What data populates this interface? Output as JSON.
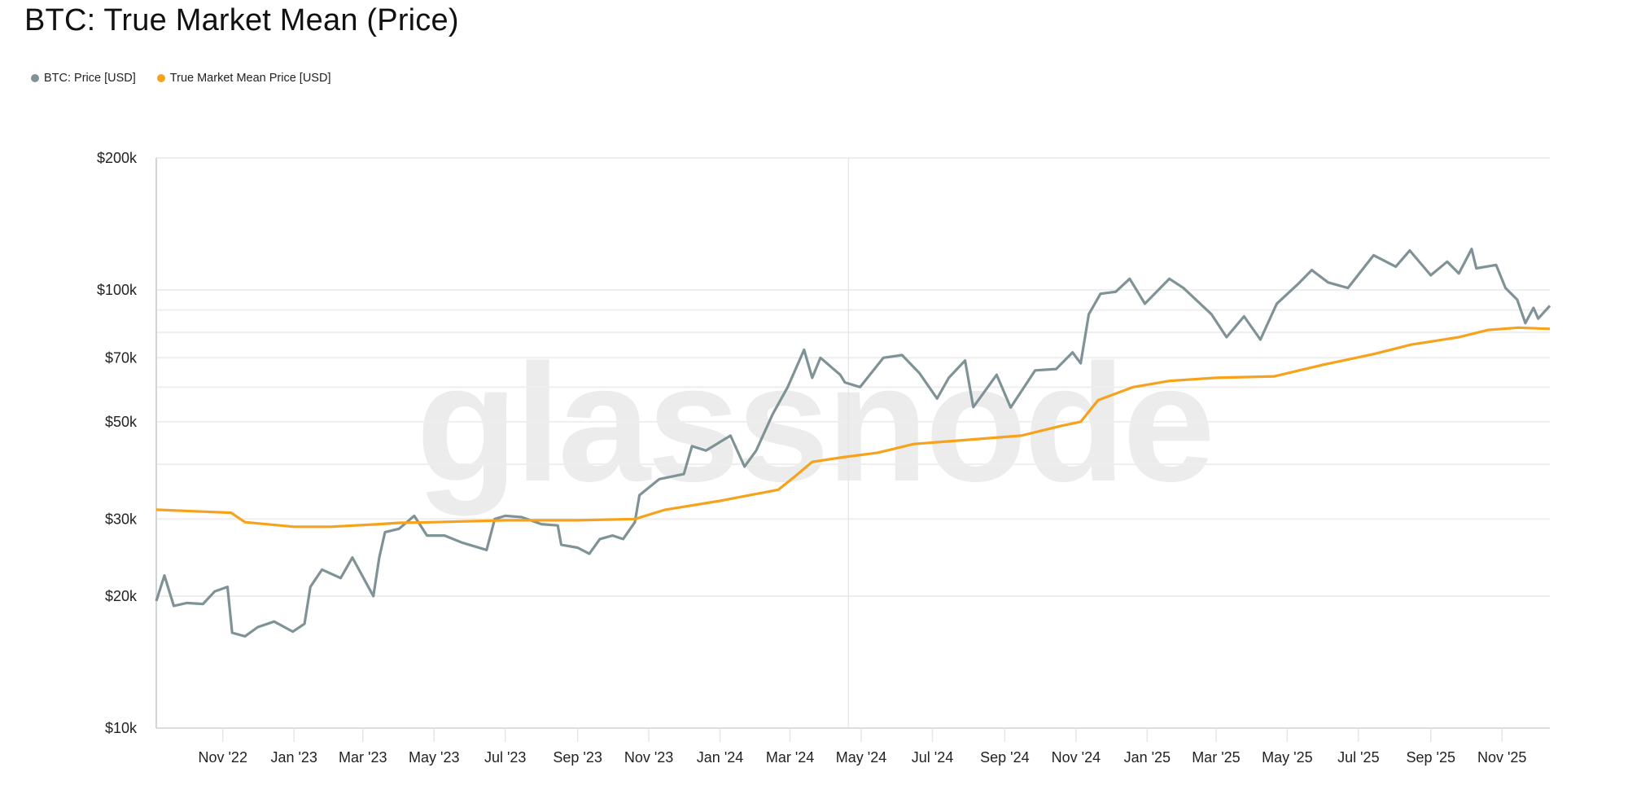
{
  "chart_data": {
    "type": "line",
    "title": "BTC: True Market Mean (Price)",
    "watermark": "glassnode",
    "xlabel": "",
    "ylabel": "",
    "yscale": "log",
    "ylim": [
      10000,
      200000
    ],
    "xlim": [
      "2022-09-05",
      "2025-12-12"
    ],
    "grid": true,
    "legend_position": "top-left",
    "y_gridlines": [
      {
        "value": 200000,
        "label": "$200k"
      },
      {
        "value": 100000,
        "label": "$100k"
      },
      {
        "value": 90000,
        "label": ""
      },
      {
        "value": 80000,
        "label": ""
      },
      {
        "value": 70000,
        "label": "$70k"
      },
      {
        "value": 60000,
        "label": ""
      },
      {
        "value": 50000,
        "label": "$50k"
      },
      {
        "value": 40000,
        "label": ""
      },
      {
        "value": 30000,
        "label": "$30k"
      },
      {
        "value": 20000,
        "label": "$20k"
      },
      {
        "value": 10000,
        "label": "$10k"
      }
    ],
    "x_ticks": [
      {
        "date": "2022-11-01",
        "label": "Nov '22"
      },
      {
        "date": "2023-01-01",
        "label": "Jan '23"
      },
      {
        "date": "2023-03-01",
        "label": "Mar '23"
      },
      {
        "date": "2023-05-01",
        "label": "May '23"
      },
      {
        "date": "2023-07-01",
        "label": "Jul '23"
      },
      {
        "date": "2023-09-01",
        "label": "Sep '23"
      },
      {
        "date": "2023-11-01",
        "label": "Nov '23"
      },
      {
        "date": "2024-01-01",
        "label": "Jan '24"
      },
      {
        "date": "2024-03-01",
        "label": "Mar '24"
      },
      {
        "date": "2024-05-01",
        "label": "May '24"
      },
      {
        "date": "2024-07-01",
        "label": "Jul '24"
      },
      {
        "date": "2024-09-01",
        "label": "Sep '24"
      },
      {
        "date": "2024-11-01",
        "label": "Nov '24"
      },
      {
        "date": "2025-01-01",
        "label": "Jan '25"
      },
      {
        "date": "2025-03-01",
        "label": "Mar '25"
      },
      {
        "date": "2025-05-01",
        "label": "May '25"
      },
      {
        "date": "2025-07-01",
        "label": "Jul '25"
      },
      {
        "date": "2025-09-01",
        "label": "Sep '25"
      },
      {
        "date": "2025-11-01",
        "label": "Nov '25"
      }
    ],
    "vertical_marker": "2024-04-20",
    "series": [
      {
        "name": "BTC: Price [USD]",
        "color": "#7f9396",
        "points": [
          [
            "2022-09-05",
            19500
          ],
          [
            "2022-09-12",
            22300
          ],
          [
            "2022-09-20",
            19000
          ],
          [
            "2022-10-01",
            19300
          ],
          [
            "2022-10-15",
            19200
          ],
          [
            "2022-10-25",
            20500
          ],
          [
            "2022-11-05",
            21000
          ],
          [
            "2022-11-09",
            16500
          ],
          [
            "2022-11-20",
            16200
          ],
          [
            "2022-12-01",
            17000
          ],
          [
            "2022-12-15",
            17500
          ],
          [
            "2022-12-31",
            16600
          ],
          [
            "2023-01-10",
            17300
          ],
          [
            "2023-01-15",
            21000
          ],
          [
            "2023-01-25",
            23000
          ],
          [
            "2023-02-10",
            22000
          ],
          [
            "2023-02-20",
            24500
          ],
          [
            "2023-03-10",
            20000
          ],
          [
            "2023-03-15",
            24500
          ],
          [
            "2023-03-20",
            28000
          ],
          [
            "2023-04-01",
            28500
          ],
          [
            "2023-04-14",
            30500
          ],
          [
            "2023-04-25",
            27500
          ],
          [
            "2023-05-10",
            27500
          ],
          [
            "2023-05-25",
            26500
          ],
          [
            "2023-06-15",
            25500
          ],
          [
            "2023-06-22",
            30000
          ],
          [
            "2023-07-01",
            30500
          ],
          [
            "2023-07-15",
            30300
          ],
          [
            "2023-08-01",
            29200
          ],
          [
            "2023-08-15",
            29000
          ],
          [
            "2023-08-18",
            26200
          ],
          [
            "2023-09-01",
            25800
          ],
          [
            "2023-09-11",
            25000
          ],
          [
            "2023-09-20",
            27000
          ],
          [
            "2023-10-01",
            27500
          ],
          [
            "2023-10-10",
            27000
          ],
          [
            "2023-10-20",
            29500
          ],
          [
            "2023-10-24",
            34000
          ],
          [
            "2023-11-10",
            37000
          ],
          [
            "2023-12-01",
            38000
          ],
          [
            "2023-12-08",
            44000
          ],
          [
            "2023-12-20",
            43000
          ],
          [
            "2024-01-10",
            46500
          ],
          [
            "2024-01-22",
            39500
          ],
          [
            "2024-02-01",
            43000
          ],
          [
            "2024-02-15",
            52000
          ],
          [
            "2024-02-28",
            60000
          ],
          [
            "2024-03-13",
            73000
          ],
          [
            "2024-03-20",
            63000
          ],
          [
            "2024-03-27",
            70000
          ],
          [
            "2024-04-13",
            64000
          ],
          [
            "2024-04-17",
            61500
          ],
          [
            "2024-04-30",
            60000
          ],
          [
            "2024-05-20",
            70000
          ],
          [
            "2024-06-05",
            71000
          ],
          [
            "2024-06-20",
            64500
          ],
          [
            "2024-07-05",
            56500
          ],
          [
            "2024-07-15",
            63000
          ],
          [
            "2024-07-29",
            69000
          ],
          [
            "2024-08-05",
            54000
          ],
          [
            "2024-08-25",
            64000
          ],
          [
            "2024-09-06",
            53900
          ],
          [
            "2024-09-27",
            65500
          ],
          [
            "2024-10-15",
            66000
          ],
          [
            "2024-10-29",
            72000
          ],
          [
            "2024-11-05",
            68000
          ],
          [
            "2024-11-12",
            88000
          ],
          [
            "2024-11-22",
            98000
          ],
          [
            "2024-12-05",
            99000
          ],
          [
            "2024-12-17",
            106000
          ],
          [
            "2024-12-30",
            93000
          ],
          [
            "2025-01-20",
            106000
          ],
          [
            "2025-02-01",
            101000
          ],
          [
            "2025-02-25",
            88000
          ],
          [
            "2025-03-10",
            78000
          ],
          [
            "2025-03-25",
            87000
          ],
          [
            "2025-04-08",
            77000
          ],
          [
            "2025-04-22",
            93000
          ],
          [
            "2025-05-10",
            103000
          ],
          [
            "2025-05-22",
            111000
          ],
          [
            "2025-06-05",
            104000
          ],
          [
            "2025-06-22",
            101000
          ],
          [
            "2025-07-14",
            120000
          ],
          [
            "2025-08-02",
            113000
          ],
          [
            "2025-08-14",
            123000
          ],
          [
            "2025-09-01",
            108000
          ],
          [
            "2025-09-15",
            116000
          ],
          [
            "2025-09-25",
            109000
          ],
          [
            "2025-10-06",
            124000
          ],
          [
            "2025-10-10",
            112000
          ],
          [
            "2025-10-27",
            114000
          ],
          [
            "2025-11-04",
            101000
          ],
          [
            "2025-11-14",
            95000
          ],
          [
            "2025-11-21",
            84000
          ],
          [
            "2025-11-28",
            91000
          ],
          [
            "2025-12-02",
            86000
          ],
          [
            "2025-12-12",
            92000
          ]
        ]
      },
      {
        "name": "True Market Mean Price [USD]",
        "color": "#f7a21b",
        "points": [
          [
            "2022-09-05",
            31500
          ],
          [
            "2022-11-08",
            31000
          ],
          [
            "2022-11-20",
            29500
          ],
          [
            "2023-01-01",
            28800
          ],
          [
            "2023-02-01",
            28800
          ],
          [
            "2023-03-15",
            29200
          ],
          [
            "2023-04-01",
            29400
          ],
          [
            "2023-05-01",
            29500
          ],
          [
            "2023-07-01",
            29800
          ],
          [
            "2023-09-01",
            29800
          ],
          [
            "2023-10-20",
            30000
          ],
          [
            "2023-11-15",
            31500
          ],
          [
            "2024-01-01",
            33000
          ],
          [
            "2024-02-20",
            35000
          ],
          [
            "2024-03-05",
            37500
          ],
          [
            "2024-03-20",
            40500
          ],
          [
            "2024-04-15",
            41500
          ],
          [
            "2024-05-15",
            42500
          ],
          [
            "2024-06-15",
            44500
          ],
          [
            "2024-08-01",
            45500
          ],
          [
            "2024-09-15",
            46500
          ],
          [
            "2024-10-20",
            49000
          ],
          [
            "2024-11-05",
            50000
          ],
          [
            "2024-11-20",
            56000
          ],
          [
            "2024-12-20",
            60000
          ],
          [
            "2025-01-20",
            62000
          ],
          [
            "2025-03-01",
            63000
          ],
          [
            "2025-04-20",
            63500
          ],
          [
            "2025-06-01",
            67500
          ],
          [
            "2025-07-15",
            71500
          ],
          [
            "2025-08-15",
            75000
          ],
          [
            "2025-09-25",
            78000
          ],
          [
            "2025-10-20",
            81000
          ],
          [
            "2025-11-15",
            82000
          ],
          [
            "2025-12-12",
            81500
          ]
        ]
      }
    ]
  }
}
